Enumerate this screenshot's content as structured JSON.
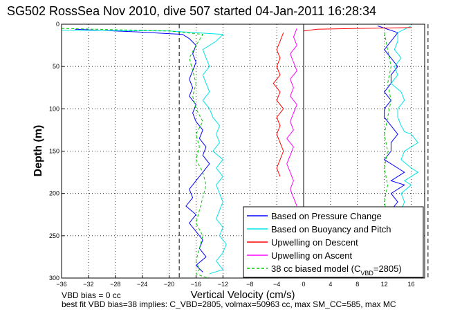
{
  "figure": {
    "title": "SG502 RossSea Nov 2010, dive 507 started 04-Jan-2011 16:28:34",
    "footer_line1": "VBD bias = 0 cc",
    "footer_line2": "best fit VBD bias=38 implies: C_VBD=2805, volmax=50963 cc, max SM_CC=585, max MC"
  },
  "chart_data": {
    "type": "line",
    "title": "SG502 RossSea Nov 2010, dive 507 started 04-Jan-2011 16:28:34",
    "xlabel": "Vertical Velocity (cm/s)",
    "ylabel": "Depth (m)",
    "xlim": [
      -36,
      18
    ],
    "ylim": [
      300,
      0
    ],
    "xticks": [
      -36,
      -32,
      -28,
      -24,
      -20,
      -16,
      -12,
      -8,
      -4,
      0,
      4,
      8,
      12,
      16
    ],
    "yticks": [
      0,
      50,
      100,
      150,
      200,
      250,
      300
    ],
    "grid": true,
    "legend_position": "bottom-right",
    "reference_lines": [
      {
        "x": -18.5,
        "style": "dashed",
        "color": "#000000"
      },
      {
        "x": 0,
        "style": "solid",
        "color": "#000000"
      },
      {
        "x": 18.5,
        "style": "dashed",
        "color": "#000000"
      }
    ],
    "series": [
      {
        "name": "Based on Pressure Change",
        "color": "#0000ff",
        "style": "solid",
        "x": [
          -34,
          -25,
          -18,
          -17,
          -16,
          -16.5,
          -16,
          -16.5,
          -17,
          -16.5,
          -17,
          -16,
          -16.5,
          -16,
          -15,
          -15.5,
          -14.5,
          -15,
          -14,
          -15,
          -16,
          -17,
          -16.5,
          -17.5,
          -16,
          -17,
          -16,
          -15,
          -15.5,
          -14.5,
          -16,
          -15
        ],
        "y": [
          6,
          9,
          12,
          17,
          25,
          35,
          45,
          55,
          65,
          75,
          85,
          95,
          105,
          115,
          125,
          135,
          145,
          155,
          165,
          175,
          185,
          195,
          205,
          215,
          225,
          235,
          245,
          255,
          265,
          275,
          285,
          293
        ],
        "x2": [
          11,
          14,
          13,
          12,
          13,
          14,
          13,
          13,
          12,
          13,
          12,
          12,
          13,
          14,
          13,
          13,
          12,
          14,
          15,
          13,
          15,
          13,
          14,
          13,
          12,
          12,
          12,
          12,
          12,
          11,
          8,
          4
        ],
        "y2": [
          2,
          10,
          20,
          30,
          40,
          50,
          60,
          70,
          80,
          90,
          100,
          110,
          120,
          130,
          140,
          150,
          160,
          170,
          175,
          185,
          190,
          200,
          210,
          220,
          230,
          240,
          250,
          260,
          270,
          280,
          292,
          298
        ]
      },
      {
        "name": "Based on Buoyancy and Pitch",
        "color": "#00e5e5",
        "style": "solid",
        "x": [
          -36,
          -20,
          -12,
          -13,
          -15,
          -14.5,
          -14,
          -15,
          -14.5,
          -14,
          -15,
          -14,
          -13.5,
          -12.5,
          -13,
          -12.5,
          -13.5,
          -12,
          -13,
          -12,
          -13,
          -12.5,
          -12,
          -12.5,
          -13,
          -12,
          -12.5,
          -11.5,
          -12,
          -13,
          -12,
          -14
        ],
        "y": [
          7,
          8,
          12,
          20,
          30,
          40,
          50,
          60,
          70,
          80,
          90,
          100,
          110,
          120,
          130,
          140,
          150,
          160,
          170,
          180,
          190,
          200,
          210,
          220,
          230,
          240,
          250,
          260,
          270,
          280,
          290,
          295
        ],
        "x2": [
          16,
          14,
          14,
          13.5,
          14.5,
          13.5,
          14,
          13,
          14.5,
          15,
          14,
          14,
          14.5,
          15,
          16,
          17,
          15,
          14.5,
          16,
          17,
          15,
          16,
          14.5,
          15,
          14.5,
          13.5,
          14,
          13,
          14,
          13,
          9,
          3
        ],
        "y2": [
          2,
          10,
          20,
          30,
          40,
          50,
          60,
          70,
          80,
          90,
          100,
          110,
          120,
          127,
          130,
          140,
          150,
          160,
          170,
          175,
          185,
          190,
          200,
          210,
          220,
          230,
          240,
          250,
          260,
          270,
          290,
          300
        ]
      },
      {
        "name": "Upwelling on Descent",
        "color": "#ff0000",
        "style": "solid",
        "x": [
          -3,
          -3.5,
          -4,
          -3.5,
          -4,
          -3.5,
          -4.5,
          -3.5,
          -4,
          -3,
          -4,
          -3.5,
          -4,
          -3.5,
          -3,
          -3.5,
          -4,
          -3.5
        ],
        "y": [
          10,
          20,
          30,
          40,
          50,
          60,
          70,
          80,
          90,
          100,
          110,
          120,
          130,
          140,
          150,
          160,
          170,
          180
        ],
        "x2": [
          16,
          8,
          2,
          0
        ],
        "y2": [
          4,
          5,
          6,
          8
        ]
      },
      {
        "name": "Upwelling on Ascent",
        "color": "#ff00ff",
        "style": "solid",
        "x": [
          -1,
          -1.5,
          -1,
          -2,
          -1.5,
          -1,
          -2,
          -1.5,
          -2,
          -1,
          -1.5,
          -2,
          -1.5,
          -2.5,
          -1.5,
          -2,
          -2.5,
          -2,
          -1.5,
          -2,
          -1.5,
          -1
        ],
        "y": [
          5,
          15,
          25,
          35,
          45,
          55,
          65,
          75,
          85,
          95,
          105,
          115,
          125,
          135,
          145,
          155,
          165,
          175,
          185,
          195,
          205,
          215
        ]
      },
      {
        "name": "38 cc biased model (C_VBD=2805)",
        "color": "#00cc00",
        "style": "dashed",
        "x": [
          -36,
          -20,
          -15,
          -16,
          -17,
          -16.5,
          -16,
          -16.5,
          -16,
          -15,
          -16,
          -15.5,
          -16,
          -15,
          -14.5,
          -15,
          -15.5,
          -16,
          -15,
          -15.5,
          -16,
          -15.5,
          -16,
          -15,
          -14
        ],
        "y": [
          5,
          8,
          12,
          25,
          40,
          55,
          70,
          85,
          100,
          115,
          130,
          145,
          160,
          175,
          190,
          205,
          220,
          235,
          250,
          265,
          280,
          290,
          295,
          298,
          300
        ],
        "x2": [
          12,
          12.5,
          13,
          12.5,
          13,
          12.5,
          12,
          12.5,
          12,
          12.5,
          12,
          12.5,
          13,
          12,
          12.5
        ],
        "y2": [
          10,
          30,
          50,
          70,
          90,
          110,
          130,
          150,
          170,
          190,
          210,
          230,
          250,
          270,
          290
        ]
      }
    ]
  }
}
